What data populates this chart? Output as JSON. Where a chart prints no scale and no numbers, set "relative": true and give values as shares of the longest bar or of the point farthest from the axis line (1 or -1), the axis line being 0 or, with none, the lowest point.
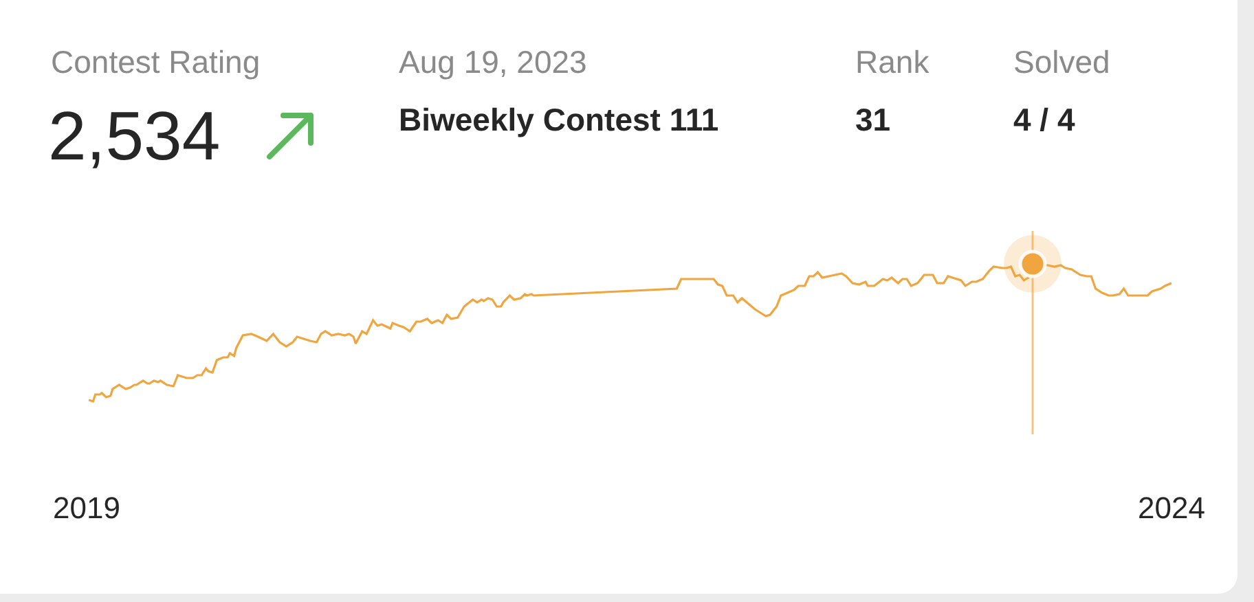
{
  "chart_data": {
    "type": "line",
    "relative": true,
    "annotations": [
      "Contest Rating",
      "2,534",
      "Aug 19, 2023",
      "Biweekly Contest 111",
      "Rank",
      "31",
      "Solved",
      "4 / 4"
    ],
    "xlim": [
      2019,
      2024
    ],
    "xticks": [
      2019,
      2024
    ],
    "line_style": "solid",
    "ref_lines": [
      {
        "axis": "x",
        "value": 2023.36,
        "color": "#f7c47f"
      }
    ],
    "series": [
      {
        "color": "#f0a53e",
        "marker": "none",
        "x": [
          2019.01,
          2019.03,
          2019.04,
          2019.06,
          2019.07,
          2019.09,
          2019.11,
          2019.12,
          2019.15,
          2019.18,
          2019.2,
          2019.22,
          2019.23,
          2019.26,
          2019.28,
          2019.29,
          2019.31,
          2019.33,
          2019.34,
          2019.37,
          2019.4,
          2019.42,
          2019.46,
          2019.49,
          2019.51,
          2019.53,
          2019.55,
          2019.56,
          2019.58,
          2019.6,
          2019.63,
          2019.65,
          2019.66,
          2019.68,
          2019.69,
          2019.72,
          2019.76,
          2019.79,
          2019.83,
          2019.86,
          2019.89,
          2019.92,
          2019.95,
          2019.97,
          2019.99,
          2020.03,
          2020.06,
          2020.08,
          2020.1,
          2020.13,
          2020.16,
          2020.19,
          2020.21,
          2020.23,
          2020.24,
          2020.27,
          2020.29,
          2020.32,
          2020.34,
          2020.36,
          2020.4,
          2020.41,
          2020.44,
          2020.46,
          2020.49,
          2020.52,
          2020.54,
          2020.57,
          2020.59,
          2020.62,
          2020.64,
          2020.66,
          2020.68,
          2020.71,
          2020.74,
          2020.78,
          2020.8,
          2020.82,
          2020.83,
          2020.85,
          2020.87,
          2020.89,
          2020.91,
          2020.92,
          2020.95,
          2020.97,
          2021.0,
          2021.02,
          2021.03,
          2021.05,
          2021.06,
          2021.72,
          2021.74,
          2021.89,
          2021.91,
          2021.93,
          2021.95,
          2021.98,
          2022.0,
          2022.02,
          2022.05,
          2022.08,
          2022.11,
          2022.13,
          2022.15,
          2022.18,
          2022.2,
          2022.23,
          2022.26,
          2022.28,
          2022.31,
          2022.33,
          2022.35,
          2022.37,
          2022.39,
          2022.45,
          2022.48,
          2022.5,
          2022.53,
          2022.56,
          2022.59,
          2022.6,
          2022.63,
          2022.67,
          2022.69,
          2022.71,
          2022.74,
          2022.76,
          2022.78,
          2022.8,
          2022.83,
          2022.86,
          2022.9,
          2022.92,
          2022.95,
          2022.97,
          2022.99,
          2023.03,
          2023.05,
          2023.08,
          2023.1,
          2023.13,
          2023.16,
          2023.18,
          2023.22,
          2023.24,
          2023.26,
          2023.28,
          2023.3,
          2023.32,
          2023.34,
          2023.36,
          2023.43,
          2023.46,
          2023.49,
          2023.51,
          2023.54,
          2023.58,
          2023.61,
          2023.63,
          2023.65,
          2023.68,
          2023.71,
          2023.73,
          2023.76,
          2023.78,
          2023.8,
          2023.84,
          2023.89,
          2023.91,
          2023.95,
          2023.97,
          2024.0
        ],
        "values": [
          0.01,
          0,
          0.05,
          0.05,
          0.06,
          0.03,
          0.04,
          0.09,
          0.12,
          0.09,
          0.1,
          0.12,
          0.12,
          0.15,
          0.13,
          0.13,
          0.15,
          0.14,
          0.15,
          0.12,
          0.11,
          0.19,
          0.17,
          0.17,
          0.19,
          0.19,
          0.24,
          0.22,
          0.21,
          0.3,
          0.32,
          0.32,
          0.35,
          0.33,
          0.39,
          0.48,
          0.49,
          0.47,
          0.44,
          0.49,
          0.43,
          0.4,
          0.43,
          0.47,
          0.46,
          0.44,
          0.43,
          0.49,
          0.51,
          0.48,
          0.49,
          0.48,
          0.49,
          0.47,
          0.42,
          0.51,
          0.49,
          0.59,
          0.55,
          0.56,
          0.53,
          0.57,
          0.55,
          0.54,
          0.51,
          0.58,
          0.58,
          0.6,
          0.57,
          0.59,
          0.57,
          0.63,
          0.6,
          0.61,
          0.69,
          0.74,
          0.72,
          0.74,
          0.73,
          0.75,
          0.74,
          0.69,
          0.69,
          0.72,
          0.77,
          0.74,
          0.75,
          0.78,
          0.77,
          0.78,
          0.77,
          0.82,
          0.89,
          0.89,
          0.85,
          0.84,
          0.77,
          0.77,
          0.72,
          0.75,
          0.71,
          0.67,
          0.64,
          0.62,
          0.63,
          0.69,
          0.77,
          0.79,
          0.81,
          0.84,
          0.84,
          0.91,
          0.91,
          0.94,
          0.9,
          0.92,
          0.93,
          0.91,
          0.86,
          0.85,
          0.87,
          0.84,
          0.84,
          0.89,
          0.88,
          0.9,
          0.86,
          0.89,
          0.89,
          0.84,
          0.86,
          0.92,
          0.92,
          0.86,
          0.86,
          0.91,
          0.9,
          0.88,
          0.84,
          0.87,
          0.87,
          0.89,
          0.95,
          0.98,
          0.97,
          0.97,
          0.98,
          0.91,
          0.92,
          0.88,
          0.9,
          1,
          0.99,
          0.98,
          0.99,
          0.97,
          0.96,
          0.92,
          0.91,
          0.91,
          0.82,
          0.79,
          0.77,
          0.77,
          0.78,
          0.82,
          0.77,
          0.77,
          0.77,
          0.8,
          0.82,
          0.84,
          0.86
        ]
      },
      {
        "type": "scatter",
        "marker": "circle",
        "color": "#f0a53e",
        "x": [
          2023.36
        ],
        "values": [
          1
        ]
      }
    ]
  }
}
